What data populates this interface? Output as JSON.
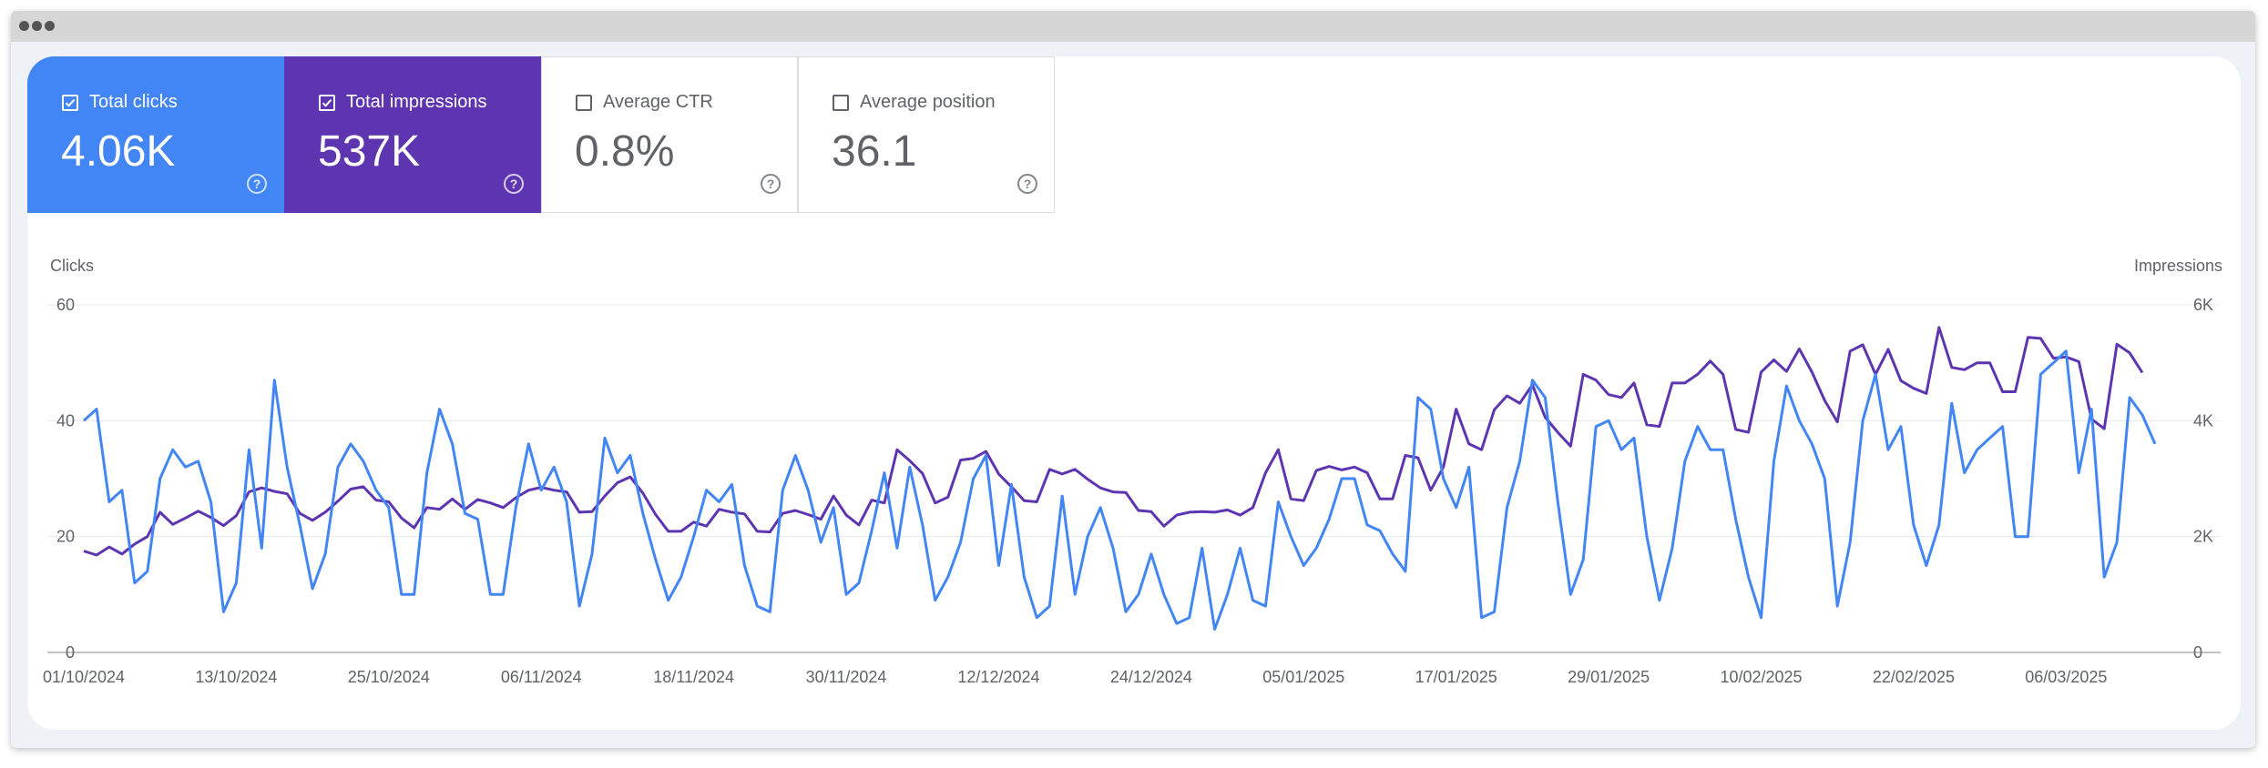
{
  "metrics": [
    {
      "label": "Total clicks",
      "value": "4.06K",
      "checked": true,
      "color": "#4285f4"
    },
    {
      "label": "Total impressions",
      "value": "537K",
      "checked": true,
      "color": "#5e35b1"
    },
    {
      "label": "Average CTR",
      "value": "0.8%",
      "checked": false
    },
    {
      "label": "Average position",
      "value": "36.1",
      "checked": false
    }
  ],
  "chart_data": {
    "type": "line",
    "left_axis_title": "Clicks",
    "right_axis_title": "Impressions",
    "left_ticks": [
      "60",
      "40",
      "20",
      "0"
    ],
    "right_ticks": [
      "6K",
      "4K",
      "2K",
      "0"
    ],
    "ylim_left": [
      0,
      60
    ],
    "ylim_right": [
      0,
      6000
    ],
    "grid": true,
    "x_tick_labels": [
      "01/10/2024",
      "13/10/2024",
      "25/10/2024",
      "06/11/2024",
      "18/11/2024",
      "30/11/2024",
      "12/12/2024",
      "24/12/2024",
      "05/01/2025",
      "17/01/2025",
      "29/01/2025",
      "10/02/2025",
      "22/02/2025",
      "06/03/2025"
    ],
    "x_start": "01/10/2024",
    "x_end": "12/03/2025",
    "series": [
      {
        "name": "Total clicks",
        "axis": "left",
        "color": "#4285f4",
        "values": [
          40,
          42,
          26,
          28,
          12,
          14,
          30,
          35,
          32,
          33,
          26,
          7,
          12,
          35,
          18,
          47,
          32,
          22,
          11,
          17,
          32,
          36,
          33,
          28,
          25,
          10,
          10,
          31,
          42,
          36,
          24,
          23,
          10,
          10,
          25,
          36,
          28,
          32,
          26,
          8,
          17,
          37,
          31,
          34,
          24,
          16,
          9,
          13,
          20,
          28,
          26,
          29,
          15,
          8,
          7,
          28,
          34,
          28,
          19,
          25,
          10,
          12,
          21,
          31,
          18,
          32,
          22,
          9,
          13,
          19,
          30,
          34,
          15,
          29,
          13,
          6,
          8,
          27,
          10,
          20,
          25,
          18,
          7,
          10,
          17,
          10,
          5,
          6,
          18,
          4,
          10,
          18,
          9,
          8,
          26,
          20,
          15,
          18,
          23,
          30,
          30,
          22,
          21,
          17,
          14,
          44,
          42,
          30,
          25,
          32,
          6,
          7,
          25,
          33,
          47,
          44,
          26,
          10,
          16,
          39,
          40,
          35,
          37,
          20,
          9,
          18,
          33,
          39,
          35,
          35,
          23,
          13,
          6,
          33,
          46,
          40,
          36,
          30,
          8,
          19,
          40,
          48,
          35,
          39,
          22,
          15,
          22,
          43,
          31,
          35,
          37,
          39,
          20,
          20,
          48,
          50,
          52,
          31,
          42,
          13,
          19,
          44,
          41,
          36
        ]
      },
      {
        "name": "Total impressions",
        "axis": "right",
        "color": "#5e35b1",
        "values": [
          1750,
          1680,
          1820,
          1700,
          1870,
          2000,
          2420,
          2210,
          2320,
          2440,
          2330,
          2190,
          2360,
          2770,
          2840,
          2780,
          2740,
          2400,
          2280,
          2420,
          2610,
          2820,
          2860,
          2630,
          2600,
          2320,
          2150,
          2500,
          2470,
          2650,
          2470,
          2640,
          2580,
          2500,
          2670,
          2800,
          2850,
          2800,
          2770,
          2420,
          2430,
          2700,
          2930,
          3030,
          2750,
          2380,
          2090,
          2090,
          2250,
          2180,
          2470,
          2420,
          2390,
          2090,
          2080,
          2400,
          2450,
          2380,
          2300,
          2700,
          2370,
          2200,
          2630,
          2580,
          3500,
          3310,
          3090,
          2580,
          2680,
          3320,
          3350,
          3470,
          3080,
          2860,
          2620,
          2600,
          3160,
          3080,
          3160,
          2990,
          2840,
          2770,
          2760,
          2450,
          2430,
          2180,
          2370,
          2420,
          2430,
          2420,
          2460,
          2370,
          2500,
          3100,
          3500,
          2650,
          2620,
          3140,
          3210,
          3150,
          3200,
          3100,
          2650,
          2650,
          3400,
          3360,
          2800,
          3200,
          4200,
          3600,
          3500,
          4190,
          4430,
          4300,
          4620,
          4060,
          3800,
          3560,
          4800,
          4700,
          4450,
          4400,
          4650,
          3930,
          3900,
          4650,
          4650,
          4800,
          5030,
          4800,
          3850,
          3800,
          4840,
          5050,
          4850,
          5240,
          4840,
          4350,
          3980,
          5200,
          5310,
          4800,
          5230,
          4690,
          4560,
          4470,
          5610,
          4920,
          4880,
          5000,
          5000,
          4500,
          4500,
          5440,
          5420,
          5080,
          5100,
          5020,
          4030,
          3860,
          5320,
          5170,
          4830
        ]
      }
    ]
  }
}
